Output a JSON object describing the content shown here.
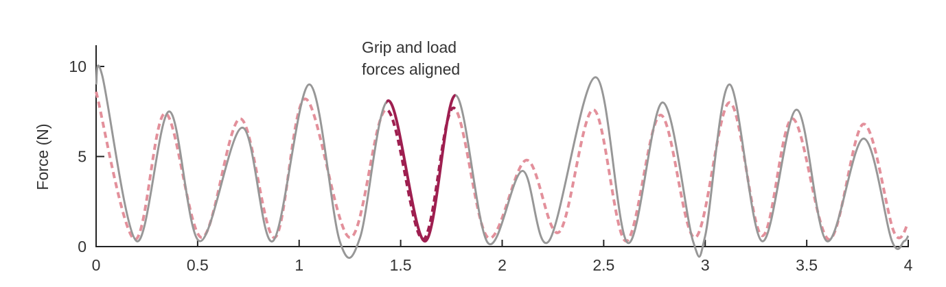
{
  "chart_data": {
    "type": "line",
    "title": "",
    "xlabel": "",
    "ylabel": "Force (N)",
    "xlim": [
      0,
      4
    ],
    "ylim": [
      0,
      11
    ],
    "xticks": [
      "0",
      "0.5",
      "1",
      "1.5",
      "2",
      "2.5",
      "3",
      "3.5",
      "4"
    ],
    "yticks": [
      "0",
      "5",
      "10"
    ],
    "grid": false,
    "annotation": {
      "lines": [
        "Grip and load",
        "forces aligned"
      ],
      "x_start": 1.43,
      "x_end": 1.77
    },
    "colors": {
      "grip": "#979797",
      "load": "#e3909b",
      "highlight": "#9e1f50",
      "axis": "#222222"
    },
    "series": [
      {
        "style": "solid",
        "x": [
          0,
          0.03,
          0.2,
          0.36,
          0.51,
          0.72,
          0.87,
          1.05,
          1.2,
          1.3,
          1.44,
          1.62,
          1.77,
          1.93,
          2.1,
          2.23,
          2.46,
          2.62,
          2.79,
          2.94,
          3.0,
          3.12,
          3.28,
          3.45,
          3.6,
          3.78,
          3.92,
          3.98,
          4.0
        ],
        "y": [
          9.0,
          9.5,
          0.3,
          7.5,
          0.3,
          6.6,
          0.3,
          9.0,
          0.3,
          0.5,
          8.1,
          0.3,
          8.4,
          0.2,
          4.2,
          0.3,
          9.4,
          0.2,
          8.0,
          0.3,
          0.6,
          9.0,
          0.3,
          7.6,
          0.3,
          6.0,
          0.3,
          0.3,
          0.6
        ]
      },
      {
        "style": "dashed",
        "x": [
          0,
          0.19,
          0.34,
          0.52,
          0.71,
          0.88,
          1.03,
          1.25,
          1.43,
          1.61,
          1.76,
          1.93,
          2.12,
          2.28,
          2.45,
          2.61,
          2.78,
          2.95,
          3.12,
          3.28,
          3.43,
          3.61,
          3.78,
          3.93,
          4.0
        ],
        "y": [
          8.6,
          0.4,
          7.4,
          0.5,
          7.1,
          0.5,
          8.2,
          0.5,
          7.6,
          0.4,
          7.7,
          0.5,
          4.8,
          0.8,
          7.6,
          0.3,
          7.3,
          0.5,
          8.0,
          0.6,
          7.1,
          0.4,
          6.8,
          0.8,
          1.3
        ]
      }
    ]
  }
}
